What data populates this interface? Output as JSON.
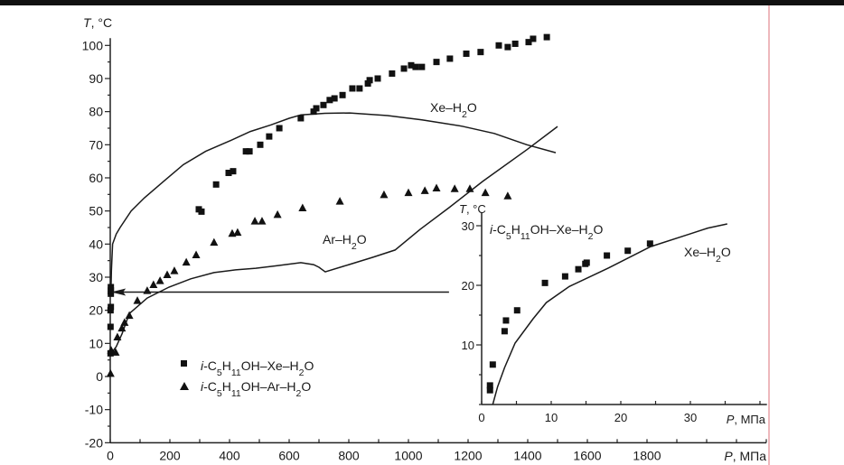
{
  "chart_data": [
    {
      "type": "scatter",
      "name": "main",
      "ylabel": "T, °C",
      "xlabel": "P, МПа",
      "xlim": [
        0,
        2200
      ],
      "ylim": [
        -20,
        100
      ],
      "x_ticks": [
        0,
        200,
        400,
        600,
        800,
        1000,
        1200,
        1400,
        1600,
        1800
      ],
      "y_ticks": [
        -20,
        -10,
        0,
        10,
        20,
        30,
        40,
        50,
        60,
        70,
        80,
        90,
        100
      ],
      "series": [
        {
          "name": "i-C5H11OH–Xe–H2O",
          "marker": "square",
          "points": [
            [
              1,
              7
            ],
            [
              1,
              15
            ],
            [
              1,
              20
            ],
            [
              2,
              21
            ],
            [
              2,
              25
            ],
            [
              2,
              26
            ],
            [
              2,
              27
            ],
            [
              297,
              50.5
            ],
            [
              306,
              49.8
            ],
            [
              355,
              58
            ],
            [
              397,
              61.5
            ],
            [
              412,
              62
            ],
            [
              455,
              68
            ],
            [
              467,
              68
            ],
            [
              503,
              70
            ],
            [
              533,
              72.5
            ],
            [
              567,
              75
            ],
            [
              639,
              78
            ],
            [
              682,
              80
            ],
            [
              691,
              81
            ],
            [
              715,
              82
            ],
            [
              736,
              83.5
            ],
            [
              752,
              84
            ],
            [
              779,
              85
            ],
            [
              812,
              87
            ],
            [
              836,
              87
            ],
            [
              864,
              88.5
            ],
            [
              870,
              89.5
            ],
            [
              897,
              90
            ],
            [
              945,
              91.5
            ],
            [
              985,
              93
            ],
            [
              1009,
              94
            ],
            [
              1024,
              93.5
            ],
            [
              1045,
              93.5
            ],
            [
              1094,
              95
            ],
            [
              1139,
              96
            ],
            [
              1194,
              97.5
            ],
            [
              1242,
              98
            ],
            [
              1303,
              100
            ],
            [
              1333,
              99.5
            ],
            [
              1358,
              100.5
            ],
            [
              1403,
              101
            ],
            [
              1418,
              102
            ],
            [
              1464,
              102.5
            ]
          ]
        },
        {
          "name": "i-C5H11OH–Ar–H2O",
          "marker": "triangle",
          "points": [
            [
              1,
              1
            ],
            [
              3,
              8
            ],
            [
              18,
              7.4
            ],
            [
              24,
              12
            ],
            [
              39,
              14.7
            ],
            [
              48,
              16.4
            ],
            [
              64,
              18.5
            ],
            [
              91,
              23
            ],
            [
              124,
              26
            ],
            [
              145,
              27.8
            ],
            [
              167,
              29
            ],
            [
              191,
              30.8
            ],
            [
              215,
              32
            ],
            [
              255,
              34.6
            ],
            [
              288,
              36.8
            ],
            [
              348,
              40.6
            ],
            [
              409,
              43.3
            ],
            [
              427,
              43.6
            ],
            [
              485,
              47
            ],
            [
              509,
              47
            ],
            [
              561,
              49
            ],
            [
              645,
              51
            ],
            [
              770,
              53
            ],
            [
              918,
              55
            ],
            [
              1000,
              55.6
            ],
            [
              1055,
              56.2
            ],
            [
              1094,
              57
            ],
            [
              1155,
              56.8
            ],
            [
              1206,
              56.8
            ],
            [
              1258,
              55.6
            ],
            [
              1333,
              54.6
            ]
          ]
        },
        {
          "name": "Xe–H2O",
          "marker": "line",
          "points": [
            [
              2,
              25
            ],
            [
              4,
              32
            ],
            [
              8,
              40
            ],
            [
              20,
              43
            ],
            [
              33,
              45
            ],
            [
              70,
              50
            ],
            [
              115,
              54
            ],
            [
              180,
              59
            ],
            [
              245,
              64
            ],
            [
              320,
              68
            ],
            [
              397,
              71
            ],
            [
              470,
              74
            ],
            [
              539,
              76
            ],
            [
              600,
              78
            ],
            [
              639,
              79
            ],
            [
              720,
              79.5
            ],
            [
              803,
              79.6
            ],
            [
              930,
              78.8
            ],
            [
              1045,
              77.5
            ],
            [
              1180,
              75.6
            ],
            [
              1288,
              73.4
            ],
            [
              1397,
              70
            ],
            [
              1494,
              67.6
            ]
          ]
        },
        {
          "name": "Ar–H2O",
          "marker": "line",
          "points": [
            [
              3,
              7
            ],
            [
              20,
              9
            ],
            [
              40,
              13
            ],
            [
              64,
              19
            ],
            [
              124,
              23.7
            ],
            [
              197,
              27
            ],
            [
              270,
              29.5
            ],
            [
              348,
              31.4
            ],
            [
              420,
              32.2
            ],
            [
              488,
              32.7
            ],
            [
              560,
              33.5
            ],
            [
              639,
              34.4
            ],
            [
              682,
              33.8
            ],
            [
              700,
              33
            ],
            [
              721,
              31.6
            ],
            [
              800,
              33.8
            ],
            [
              880,
              36
            ],
            [
              955,
              38.2
            ],
            [
              1040,
              44.5
            ],
            [
              1136,
              51
            ],
            [
              1250,
              59
            ],
            [
              1397,
              68.5
            ],
            [
              1500,
              75.5
            ]
          ]
        }
      ],
      "arrow": {
        "from": [
          1136,
          25.5
        ],
        "to": [
          40,
          25.5
        ]
      },
      "annotations": {
        "xe_h2o": "Xe–H2O",
        "ar_h2o": "Ar–H2O"
      },
      "legend": {
        "placement": "lower-left",
        "entries": [
          "i-C5H11OH–Xe–H2O",
          "i-C5H11OH–Ar–H2O"
        ]
      }
    },
    {
      "type": "scatter",
      "name": "inset",
      "ylabel": "T, °C",
      "xlabel": "P, МПа",
      "xlim": [
        0,
        41
      ],
      "ylim": [
        0,
        31
      ],
      "x_ticks": [
        0,
        10,
        20,
        30
      ],
      "y_ticks": [
        10,
        20,
        30
      ],
      "series": [
        {
          "name": "i-C5H11OH–Xe–H2O",
          "marker": "square",
          "points": [
            [
              1.2,
              3.2
            ],
            [
              1.2,
              2.4
            ],
            [
              1.6,
              6.7
            ],
            [
              3.3,
              12.3
            ],
            [
              3.5,
              14.1
            ],
            [
              5.1,
              15.8
            ],
            [
              9.1,
              20.4
            ],
            [
              12,
              21.5
            ],
            [
              13.9,
              22.7
            ],
            [
              14.9,
              23.6
            ],
            [
              15.1,
              23.8
            ],
            [
              18,
              25
            ],
            [
              21,
              25.8
            ],
            [
              24.2,
              27
            ]
          ]
        },
        {
          "name": "Xe–H2O",
          "marker": "line",
          "points": [
            [
              1.6,
              0
            ],
            [
              2.3,
              3
            ],
            [
              3.3,
              6.2
            ],
            [
              4.8,
              10.3
            ],
            [
              7.4,
              14.4
            ],
            [
              9.3,
              17.1
            ],
            [
              12.6,
              19.8
            ],
            [
              18.2,
              22.9
            ],
            [
              24.3,
              26.5
            ],
            [
              29.9,
              28.6
            ],
            [
              32.5,
              29.6
            ],
            [
              35.3,
              30.3
            ]
          ]
        }
      ],
      "annotations": {
        "series_label": "i-C5H11OH–Xe–H2O",
        "xe_h2o": "Xe–H2O"
      }
    }
  ]
}
